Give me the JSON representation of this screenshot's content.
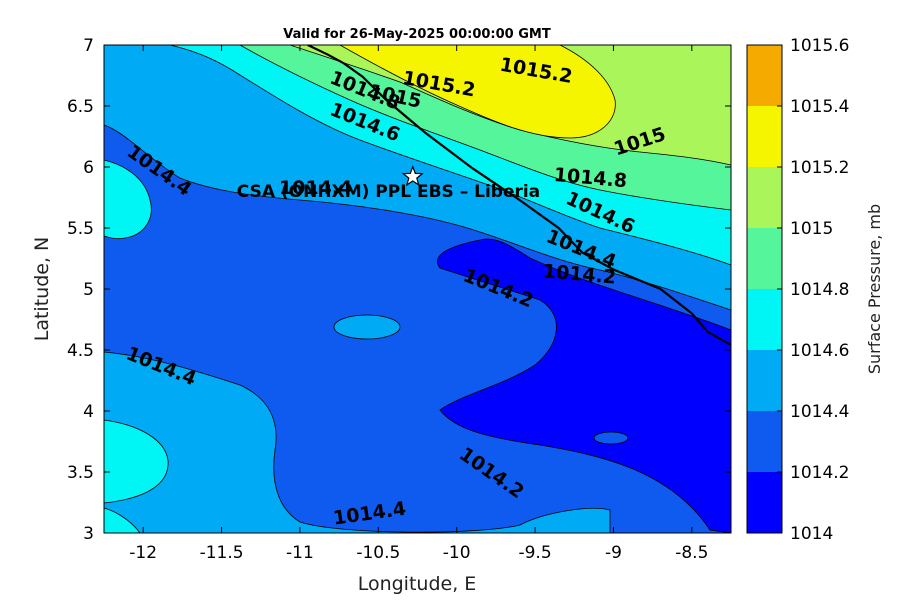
{
  "chart_data": {
    "type": "contour",
    "title": "Valid for 26-May-2025 00:00:00 GMT",
    "xlabel": "Longitude, E",
    "ylabel": "Latitude, N",
    "colorbar_label": "Surface Pressure, mb",
    "xlim": [
      -12.25,
      -8.25
    ],
    "ylim": [
      3,
      7
    ],
    "xticks": [
      -12,
      -11.5,
      -11,
      -10.5,
      -10,
      -9.5,
      -9,
      -8.5
    ],
    "xtick_labels": [
      "-12",
      "-11.5",
      "-11",
      "-10.5",
      "-10",
      "-9.5",
      "-9",
      "-8.5"
    ],
    "yticks": [
      3,
      3.5,
      4,
      4.5,
      5,
      5.5,
      6,
      6.5,
      7
    ],
    "ytick_labels": [
      "3",
      "3.5",
      "4",
      "4.5",
      "5",
      "5.5",
      "6",
      "6.5",
      "7"
    ],
    "levels": [
      1014,
      1014.2,
      1014.4,
      1014.6,
      1014.8,
      1015,
      1015.2,
      1015.4,
      1015.6
    ],
    "level_labels": [
      "1014",
      "1014.2",
      "1014.4",
      "1014.6",
      "1014.8",
      "1015",
      "1015.2",
      "1015.4",
      "1015.6"
    ],
    "band_colors": [
      "#0000ff",
      "#0f5bef",
      "#00aaf5",
      "#00f5f5",
      "#55f59b",
      "#aaf55a",
      "#f5f500",
      "#f5aa00",
      "#ff5500"
    ],
    "contour_labels": [
      {
        "text": "1015.2",
        "lon": -9.5,
        "lat": 6.74,
        "angle": 10
      },
      {
        "text": "1015.2",
        "lon": -10.12,
        "lat": 6.63,
        "angle": 10
      },
      {
        "text": "1015",
        "lon": -10.4,
        "lat": 6.53,
        "angle": 12
      },
      {
        "text": "1014.8",
        "lon": -10.6,
        "lat": 6.58,
        "angle": 22
      },
      {
        "text": "1014.6",
        "lon": -10.6,
        "lat": 6.32,
        "angle": 22
      },
      {
        "text": "1015",
        "lon": -8.82,
        "lat": 6.16,
        "angle": -18
      },
      {
        "text": "1014.8",
        "lon": -9.15,
        "lat": 5.86,
        "angle": 5
      },
      {
        "text": "1014.6",
        "lon": -9.1,
        "lat": 5.58,
        "angle": 25
      },
      {
        "text": "1014.4",
        "lon": -9.22,
        "lat": 5.28,
        "angle": 22
      },
      {
        "text": "1014.2",
        "lon": -9.22,
        "lat": 5.07,
        "angle": 5
      },
      {
        "text": "1014.2",
        "lon": -9.75,
        "lat": 4.96,
        "angle": 22
      },
      {
        "text": "1014.4",
        "lon": -11.92,
        "lat": 5.93,
        "angle": 35
      },
      {
        "text": "1014.4",
        "lon": -10.9,
        "lat": 5.78,
        "angle": 0
      },
      {
        "text": "1014.4",
        "lon": -11.9,
        "lat": 4.32,
        "angle": 22
      },
      {
        "text": "1014.2",
        "lon": -9.8,
        "lat": 3.45,
        "angle": 35
      },
      {
        "text": "1014.4",
        "lon": -10.55,
        "lat": 3.11,
        "angle": -8
      }
    ],
    "site": {
      "name": "CSA (ONHXM) PPL EBS  – Liberia",
      "lon": -10.28,
      "lat": 5.92
    },
    "coastline": [
      [
        -10.95,
        7.0
      ],
      [
        -10.82,
        6.92
      ],
      [
        -10.72,
        6.85
      ],
      [
        -10.6,
        6.74
      ],
      [
        -10.45,
        6.55
      ],
      [
        -10.32,
        6.41
      ],
      [
        -10.2,
        6.28
      ],
      [
        -9.9,
        5.99
      ],
      [
        -9.6,
        5.73
      ],
      [
        -9.35,
        5.5
      ],
      [
        -9.2,
        5.3
      ],
      [
        -9.0,
        5.16
      ],
      [
        -8.7,
        5.0
      ],
      [
        -8.5,
        4.8
      ],
      [
        -8.4,
        4.65
      ],
      [
        -8.25,
        4.54
      ]
    ]
  }
}
